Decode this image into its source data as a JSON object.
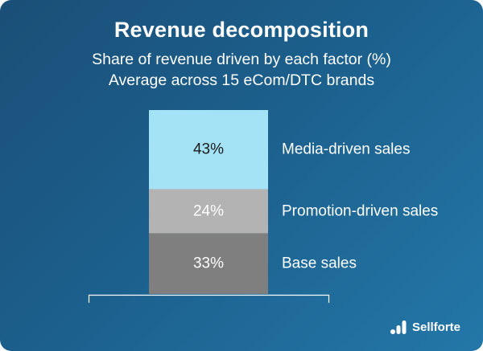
{
  "chart_data": {
    "type": "bar",
    "stacked": true,
    "title": "Revenue decomposition",
    "subtitle_lines": [
      "Share of revenue driven by each factor (%)",
      "Average across 15 eCom/DTC brands"
    ],
    "series": [
      {
        "name": "Base sales",
        "value": 33,
        "label": "33%",
        "color": "#7f7f7f",
        "label_color": "#ffffff"
      },
      {
        "name": "Promotion-driven sales",
        "value": 24,
        "label": "24%",
        "color": "#b3b3b3",
        "label_color": "#ffffff"
      },
      {
        "name": "Media-driven sales",
        "value": 43,
        "label": "43%",
        "color": "#a4e3f5",
        "label_color": "#1b1b1b"
      }
    ],
    "ylim": [
      0,
      100
    ]
  },
  "brand": {
    "name": "Sellforte",
    "icon": "bar-logo-icon"
  }
}
